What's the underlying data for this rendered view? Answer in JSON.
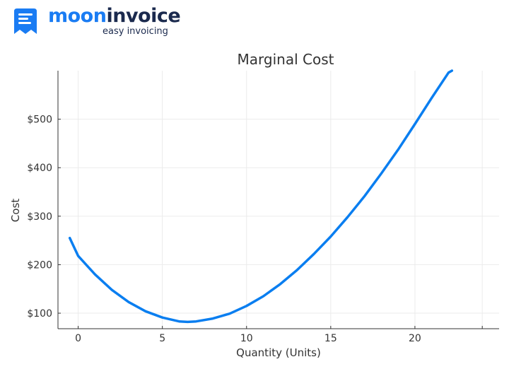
{
  "brand": {
    "name_part1": "moon",
    "name_part2": "invoice",
    "tagline": "easy invoicing",
    "primary_color": "#1a7cf3",
    "secondary_color": "#1b2a4e",
    "icon": "invoice-document-icon"
  },
  "chart_data": {
    "type": "line",
    "title": "Marginal Cost",
    "xlabel": "Quantity (Units)",
    "ylabel": "Cost",
    "xlim": [
      -1.2,
      25
    ],
    "ylim": [
      68,
      600
    ],
    "x_ticks": [
      0,
      5,
      10,
      15,
      20
    ],
    "y_ticks": [
      100,
      200,
      300,
      400,
      500
    ],
    "y_tick_labels": [
      "$100",
      "$200",
      "$300",
      "$400",
      "$500"
    ],
    "grid": true,
    "line_color": "#0a7ef0",
    "series": [
      {
        "x": [
          -0.5,
          0,
          1,
          2,
          3,
          4,
          5,
          6,
          6.5,
          7,
          8,
          9,
          10,
          11,
          12,
          13,
          14,
          15,
          16,
          17,
          18,
          19,
          20,
          21,
          22,
          22.2
        ],
        "y": [
          255,
          218,
          180,
          148,
          123,
          104,
          91,
          83,
          82,
          83,
          89,
          99,
          115,
          135,
          160,
          189,
          222,
          258,
          298,
          341,
          388,
          437,
          490,
          544,
          596,
          600
        ]
      }
    ]
  }
}
